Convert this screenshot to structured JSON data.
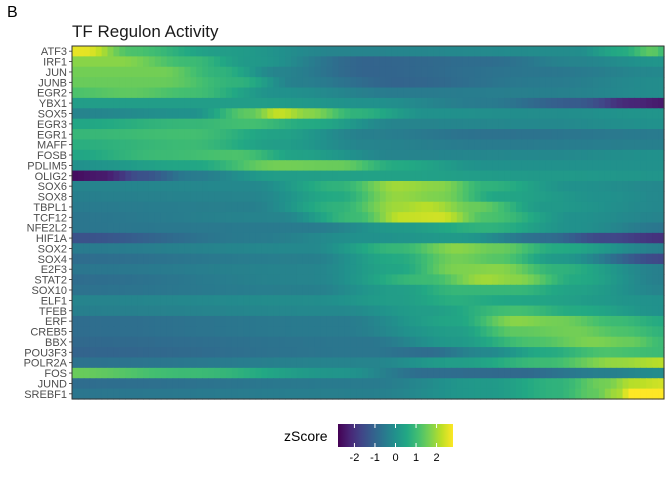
{
  "panel_letter": "B",
  "chart_data": {
    "type": "heatmap",
    "title": "TF Regulon Activity",
    "xlabel": "",
    "ylabel": "",
    "rows": [
      "ATF3",
      "IRF1",
      "JUN",
      "JUNB",
      "EGR2",
      "YBX1",
      "SOX5",
      "EGR3",
      "EGR1",
      "MAFF",
      "FOSB",
      "PDLIM5",
      "OLIG2",
      "SOX6",
      "SOX8",
      "TBPL1",
      "TCF12",
      "NFE2L2",
      "HIF1A",
      "SOX2",
      "SOX4",
      "E2F3",
      "STAT2",
      "SOX10",
      "ELF1",
      "TFEB",
      "ERF",
      "CREB5",
      "BBX",
      "POU3F3",
      "POLR2A",
      "FOS",
      "JUND",
      "SREBF1"
    ],
    "n_columns": 100,
    "profiles": [
      [
        [
          0,
          2.6
        ],
        [
          2,
          2.6
        ],
        [
          10,
          1.2
        ],
        [
          25,
          0.3
        ],
        [
          45,
          -0.3
        ],
        [
          85,
          -0.1
        ],
        [
          93,
          0.6
        ],
        [
          98,
          1.4
        ],
        [
          100,
          1.0
        ]
      ],
      [
        [
          0,
          1.8
        ],
        [
          8,
          1.8
        ],
        [
          20,
          1.0
        ],
        [
          30,
          0.2
        ],
        [
          50,
          -1.0
        ],
        [
          70,
          -0.8
        ],
        [
          85,
          -0.3
        ],
        [
          100,
          0.1
        ]
      ],
      [
        [
          0,
          1.6
        ],
        [
          15,
          1.6
        ],
        [
          25,
          0.8
        ],
        [
          35,
          -0.3
        ],
        [
          50,
          -1.0
        ],
        [
          80,
          -0.6
        ],
        [
          100,
          -0.2
        ]
      ],
      [
        [
          0,
          1.5
        ],
        [
          15,
          1.5
        ],
        [
          28,
          0.8
        ],
        [
          38,
          -0.4
        ],
        [
          55,
          -1.0
        ],
        [
          80,
          -0.5
        ],
        [
          100,
          -0.1
        ]
      ],
      [
        [
          0,
          1.2
        ],
        [
          10,
          1.4
        ],
        [
          20,
          1.1
        ],
        [
          35,
          0.0
        ],
        [
          55,
          -0.5
        ],
        [
          80,
          -0.4
        ],
        [
          100,
          -0.1
        ]
      ],
      [
        [
          0,
          0.3
        ],
        [
          30,
          0.3
        ],
        [
          50,
          0.0
        ],
        [
          70,
          -0.5
        ],
        [
          85,
          -1.2
        ],
        [
          95,
          -2.2
        ],
        [
          100,
          -2.4
        ]
      ],
      [
        [
          0,
          -0.3
        ],
        [
          20,
          0.0
        ],
        [
          30,
          1.4
        ],
        [
          35,
          2.3
        ],
        [
          40,
          1.8
        ],
        [
          48,
          0.8
        ],
        [
          60,
          0.0
        ],
        [
          80,
          -0.1
        ],
        [
          100,
          0.1
        ]
      ],
      [
        [
          0,
          0.5
        ],
        [
          20,
          0.9
        ],
        [
          30,
          1.1
        ],
        [
          40,
          0.6
        ],
        [
          55,
          -0.3
        ],
        [
          80,
          -0.2
        ],
        [
          100,
          0.0
        ]
      ],
      [
        [
          0,
          0.9
        ],
        [
          20,
          1.1
        ],
        [
          35,
          0.4
        ],
        [
          50,
          -0.4
        ],
        [
          70,
          -0.7
        ],
        [
          100,
          -0.5
        ]
      ],
      [
        [
          0,
          0.7
        ],
        [
          20,
          1.0
        ],
        [
          35,
          0.3
        ],
        [
          50,
          -0.3
        ],
        [
          70,
          -0.5
        ],
        [
          100,
          -0.4
        ]
      ],
      [
        [
          0,
          0.5
        ],
        [
          15,
          1.0
        ],
        [
          28,
          1.2
        ],
        [
          38,
          0.4
        ],
        [
          55,
          -0.3
        ],
        [
          80,
          -0.2
        ],
        [
          100,
          0.0
        ]
      ],
      [
        [
          0,
          0.0
        ],
        [
          20,
          0.5
        ],
        [
          35,
          1.6
        ],
        [
          45,
          1.5
        ],
        [
          55,
          0.6
        ],
        [
          70,
          0.0
        ],
        [
          100,
          0.0
        ]
      ],
      [
        [
          0,
          -2.6
        ],
        [
          5,
          -2.4
        ],
        [
          12,
          -1.4
        ],
        [
          20,
          -0.5
        ],
        [
          35,
          0.3
        ],
        [
          55,
          0.4
        ],
        [
          80,
          0.2
        ],
        [
          100,
          0.1
        ]
      ],
      [
        [
          0,
          -0.3
        ],
        [
          30,
          -0.2
        ],
        [
          45,
          0.8
        ],
        [
          55,
          2.0
        ],
        [
          62,
          1.8
        ],
        [
          70,
          0.8
        ],
        [
          85,
          0.0
        ],
        [
          100,
          -0.2
        ]
      ],
      [
        [
          0,
          -0.4
        ],
        [
          30,
          -0.3
        ],
        [
          45,
          0.6
        ],
        [
          55,
          1.9
        ],
        [
          62,
          1.7
        ],
        [
          72,
          0.5
        ],
        [
          90,
          0.0
        ],
        [
          100,
          -0.2
        ]
      ],
      [
        [
          0,
          -0.5
        ],
        [
          30,
          -0.4
        ],
        [
          45,
          0.8
        ],
        [
          55,
          2.0
        ],
        [
          60,
          2.2
        ],
        [
          68,
          1.5
        ],
        [
          80,
          0.2
        ],
        [
          100,
          -0.2
        ]
      ],
      [
        [
          0,
          -0.6
        ],
        [
          35,
          -0.3
        ],
        [
          48,
          1.0
        ],
        [
          56,
          2.3
        ],
        [
          62,
          2.4
        ],
        [
          70,
          1.2
        ],
        [
          85,
          0.0
        ],
        [
          100,
          -0.3
        ]
      ],
      [
        [
          0,
          -0.6
        ],
        [
          40,
          -0.5
        ],
        [
          55,
          0.2
        ],
        [
          70,
          0.8
        ],
        [
          85,
          0.0
        ],
        [
          100,
          -0.6
        ]
      ],
      [
        [
          0,
          -1.4
        ],
        [
          30,
          -0.5
        ],
        [
          50,
          0.0
        ],
        [
          65,
          0.2
        ],
        [
          80,
          -0.8
        ],
        [
          90,
          -1.6
        ],
        [
          100,
          -2.0
        ]
      ],
      [
        [
          0,
          -0.5
        ],
        [
          40,
          -0.2
        ],
        [
          55,
          0.9
        ],
        [
          65,
          1.8
        ],
        [
          72,
          1.5
        ],
        [
          82,
          0.6
        ],
        [
          100,
          -0.4
        ]
      ],
      [
        [
          0,
          -0.8
        ],
        [
          40,
          -0.4
        ],
        [
          55,
          0.6
        ],
        [
          65,
          1.6
        ],
        [
          72,
          1.3
        ],
        [
          82,
          0.2
        ],
        [
          100,
          -1.6
        ]
      ],
      [
        [
          0,
          -0.6
        ],
        [
          40,
          -0.3
        ],
        [
          55,
          0.5
        ],
        [
          65,
          1.7
        ],
        [
          72,
          1.8
        ],
        [
          82,
          0.8
        ],
        [
          100,
          -0.4
        ]
      ],
      [
        [
          0,
          -0.8
        ],
        [
          40,
          -0.3
        ],
        [
          60,
          1.0
        ],
        [
          70,
          2.0
        ],
        [
          75,
          1.8
        ],
        [
          85,
          0.6
        ],
        [
          100,
          -0.4
        ]
      ],
      [
        [
          0,
          -0.7
        ],
        [
          40,
          -0.4
        ],
        [
          55,
          0.3
        ],
        [
          65,
          0.9
        ],
        [
          75,
          0.9
        ],
        [
          85,
          0.4
        ],
        [
          100,
          -0.3
        ]
      ],
      [
        [
          0,
          -0.3
        ],
        [
          40,
          -0.1
        ],
        [
          55,
          0.3
        ],
        [
          65,
          0.7
        ],
        [
          75,
          0.5
        ],
        [
          100,
          0.0
        ]
      ],
      [
        [
          0,
          -0.4
        ],
        [
          45,
          -0.2
        ],
        [
          60,
          0.3
        ],
        [
          75,
          1.1
        ],
        [
          85,
          0.6
        ],
        [
          100,
          0.0
        ]
      ],
      [
        [
          0,
          -0.8
        ],
        [
          45,
          -0.5
        ],
        [
          65,
          0.5
        ],
        [
          75,
          1.8
        ],
        [
          82,
          1.6
        ],
        [
          92,
          1.0
        ],
        [
          100,
          0.6
        ]
      ],
      [
        [
          0,
          -0.8
        ],
        [
          45,
          -0.5
        ],
        [
          65,
          0.3
        ],
        [
          75,
          1.4
        ],
        [
          85,
          1.6
        ],
        [
          93,
          1.2
        ],
        [
          100,
          0.8
        ]
      ],
      [
        [
          0,
          -0.9
        ],
        [
          50,
          -0.6
        ],
        [
          65,
          0.2
        ],
        [
          78,
          1.2
        ],
        [
          88,
          1.7
        ],
        [
          94,
          1.5
        ],
        [
          100,
          1.0
        ]
      ],
      [
        [
          0,
          -1.0
        ],
        [
          50,
          -0.6
        ],
        [
          60,
          -0.8
        ],
        [
          70,
          -0.2
        ],
        [
          80,
          0.6
        ],
        [
          90,
          1.2
        ],
        [
          100,
          1.0
        ]
      ],
      [
        [
          0,
          -0.7
        ],
        [
          50,
          -0.3
        ],
        [
          65,
          0.3
        ],
        [
          80,
          1.0
        ],
        [
          92,
          1.9
        ],
        [
          100,
          2.2
        ]
      ],
      [
        [
          0,
          1.5
        ],
        [
          20,
          1.0
        ],
        [
          45,
          0.1
        ],
        [
          60,
          -0.8
        ],
        [
          75,
          -0.9
        ],
        [
          90,
          -0.4
        ],
        [
          100,
          -0.1
        ]
      ],
      [
        [
          0,
          -0.8
        ],
        [
          50,
          -0.5
        ],
        [
          70,
          0.2
        ],
        [
          82,
          0.8
        ],
        [
          90,
          1.6
        ],
        [
          95,
          2.2
        ],
        [
          100,
          2.4
        ]
      ],
      [
        [
          0,
          -0.6
        ],
        [
          50,
          -0.4
        ],
        [
          70,
          0.2
        ],
        [
          82,
          0.8
        ],
        [
          88,
          1.4
        ],
        [
          92,
          2.0
        ],
        [
          95,
          3.0
        ],
        [
          100,
          3.0
        ]
      ]
    ],
    "color_scale": {
      "name": "viridis",
      "limits": [
        -2.8,
        2.8
      ],
      "stops": [
        "#440154",
        "#482475",
        "#414487",
        "#355f8d",
        "#2a788e",
        "#21918c",
        "#22a884",
        "#44bf70",
        "#7ad151",
        "#bddf26",
        "#fde725"
      ]
    },
    "legend": {
      "title": "zScore",
      "ticks": [
        "-2",
        "-1",
        "0",
        "1",
        "2"
      ],
      "tick_values": [
        -2,
        -1,
        0,
        1,
        2
      ],
      "position": "bottom"
    }
  }
}
